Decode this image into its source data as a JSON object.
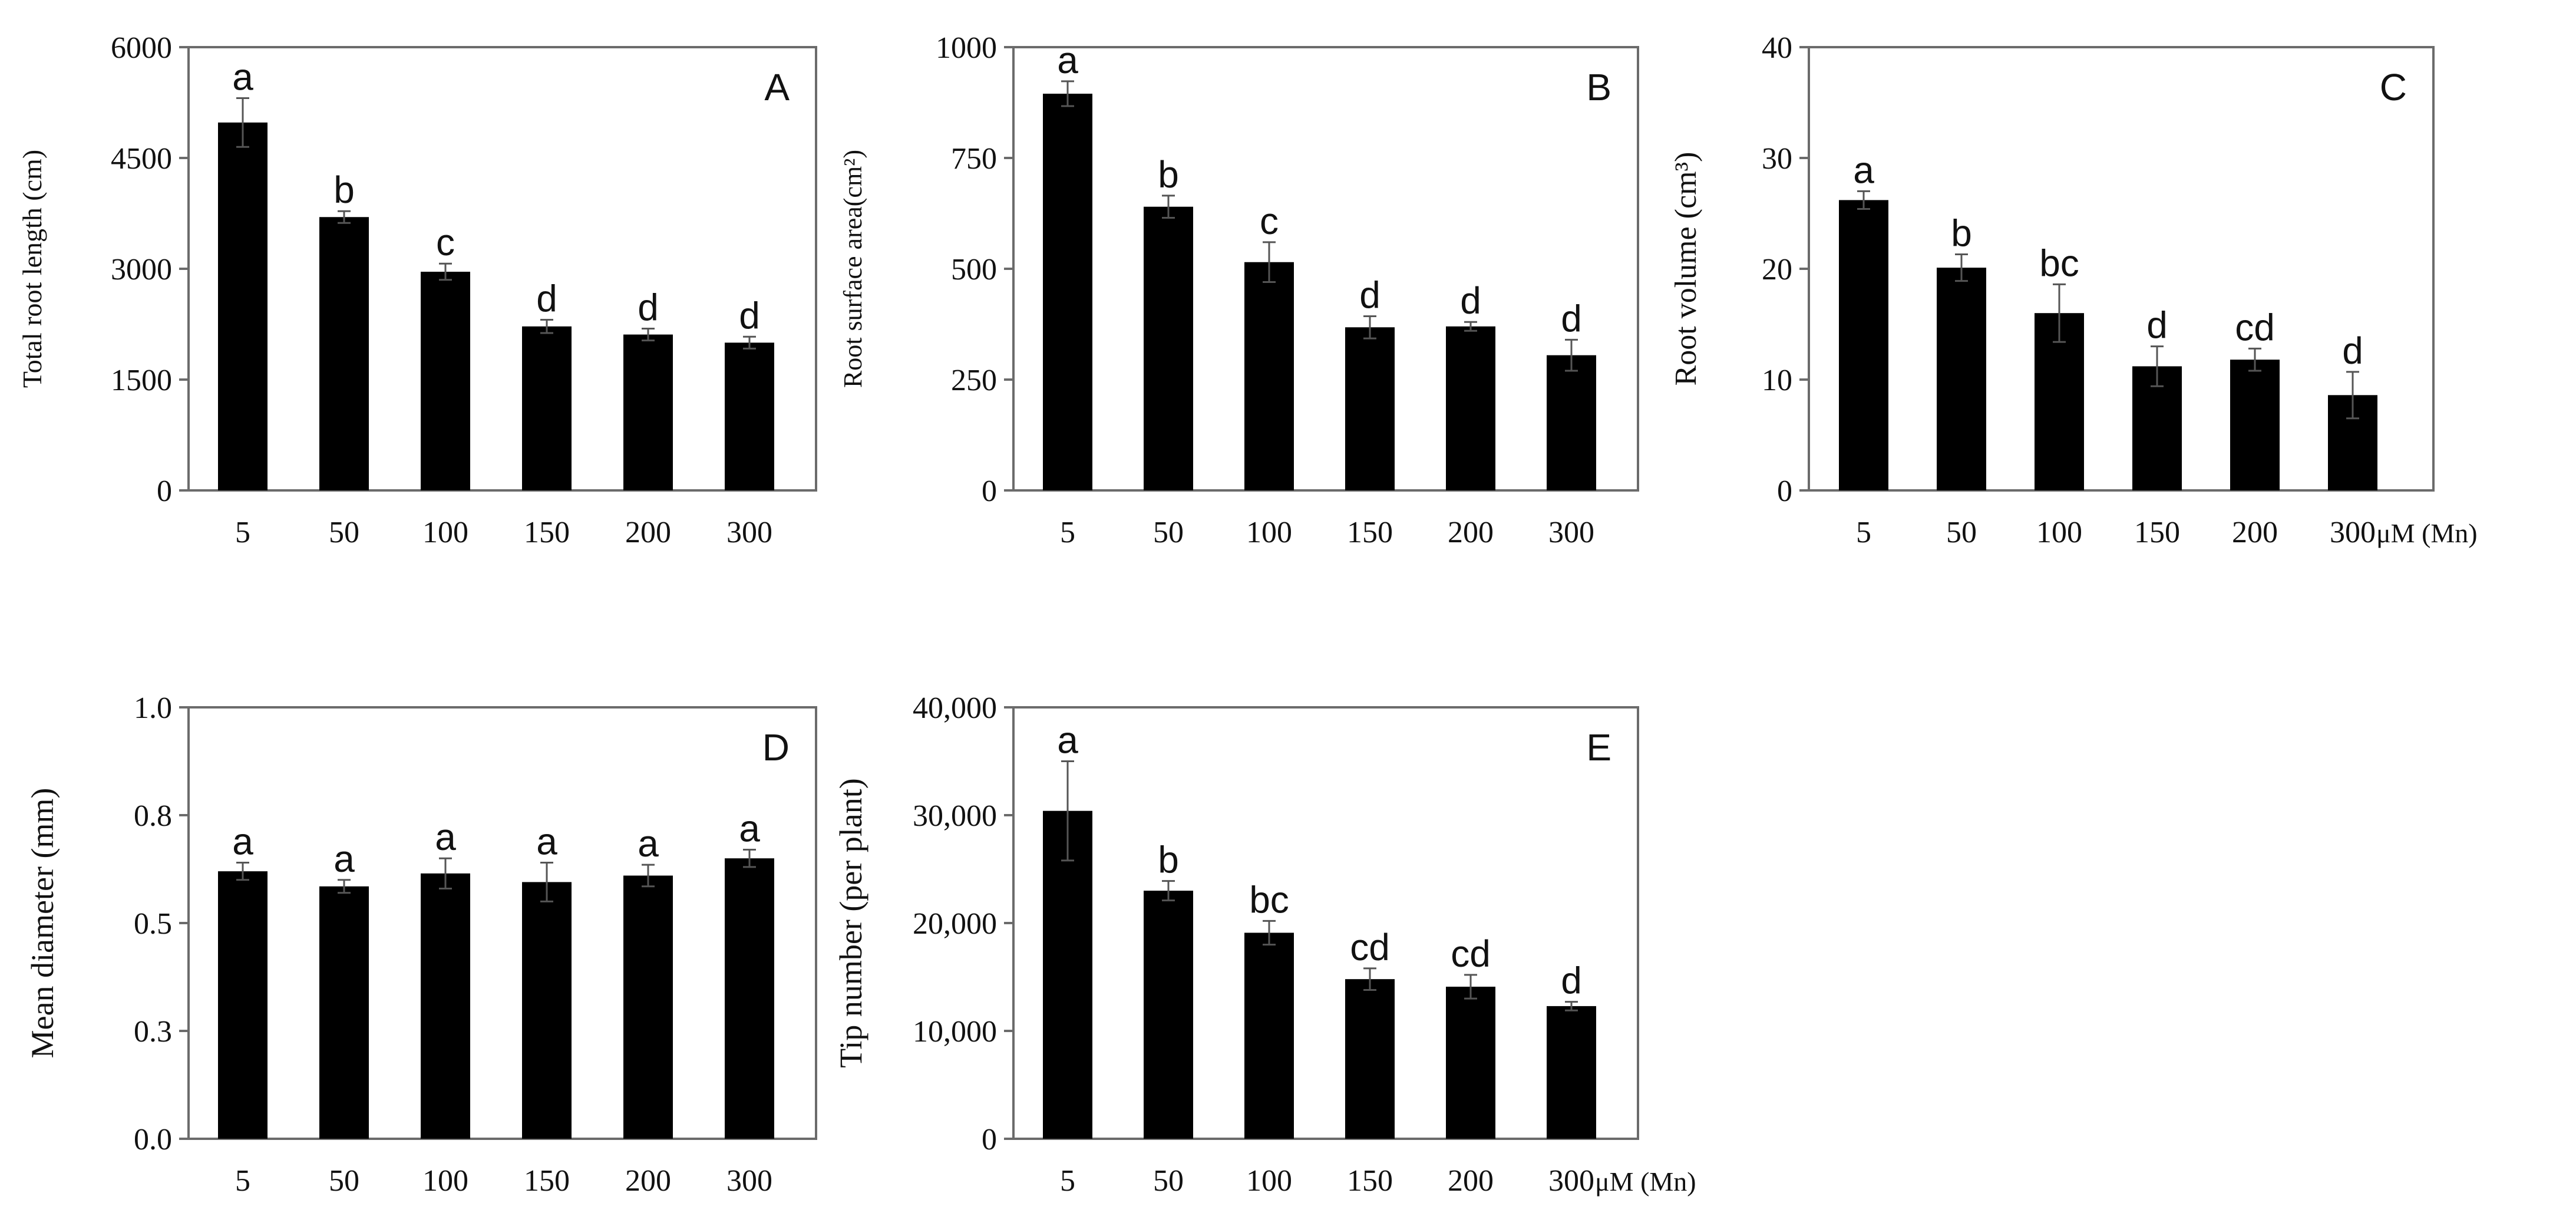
{
  "colors": {
    "bar": "#000000",
    "axis": "#6b6b6b",
    "error_bar": "#555555",
    "text": "#111111"
  },
  "chart_data": [
    {
      "type": "bar",
      "panel_letter": "A",
      "ylabel": "Total root length (cm)",
      "categories": [
        "5",
        "50",
        "100",
        "150",
        "200",
        "300"
      ],
      "values": [
        4980,
        3700,
        2960,
        2220,
        2110,
        2000
      ],
      "errors": [
        330,
        80,
        110,
        90,
        80,
        80
      ],
      "significance": [
        "a",
        "b",
        "c",
        "d",
        "d",
        "d"
      ],
      "ylim": [
        0,
        6000
      ],
      "yticks": [
        0,
        1500,
        3000,
        4500,
        6000
      ],
      "ytick_labels": [
        "0",
        "1500",
        "3000",
        "4500",
        "6000"
      ],
      "x_unit": ""
    },
    {
      "type": "bar",
      "panel_letter": "B",
      "ylabel": "Root surface area(cm²)",
      "categories": [
        "5",
        "50",
        "100",
        "150",
        "200",
        "300"
      ],
      "values": [
        895,
        640,
        515,
        368,
        370,
        305
      ],
      "errors": [
        28,
        25,
        45,
        25,
        10,
        35
      ],
      "significance": [
        "a",
        "b",
        "c",
        "d",
        "d",
        "d"
      ],
      "ylim": [
        0,
        1000
      ],
      "yticks": [
        0,
        250,
        500,
        750,
        1000
      ],
      "ytick_labels": [
        "0",
        "250",
        "500",
        "750",
        "1000"
      ],
      "x_unit": ""
    },
    {
      "type": "bar",
      "panel_letter": "C",
      "ylabel": "Root volume (cm³)",
      "categories": [
        "5",
        "50",
        "100",
        "150",
        "200",
        "300"
      ],
      "values": [
        26.2,
        20.1,
        16.0,
        11.2,
        11.8,
        8.6
      ],
      "errors": [
        0.8,
        1.2,
        2.6,
        1.8,
        1.0,
        2.1
      ],
      "significance": [
        "a",
        "b",
        "bc",
        "d",
        "cd",
        "d"
      ],
      "ylim": [
        0,
        40
      ],
      "yticks": [
        0,
        10,
        20,
        30,
        40
      ],
      "ytick_labels": [
        "0",
        "10",
        "20",
        "30",
        "40"
      ],
      "x_unit": "μM (Mn)"
    },
    {
      "type": "bar",
      "panel_letter": "D",
      "ylabel": "Mean diameter (mm)",
      "categories": [
        "5",
        "50",
        "100",
        "150",
        "200",
        "300"
      ],
      "values": [
        0.62,
        0.585,
        0.615,
        0.595,
        0.61,
        0.65
      ],
      "errors": [
        0.02,
        0.015,
        0.035,
        0.045,
        0.025,
        0.02
      ],
      "significance": [
        "a",
        "a",
        "a",
        "a",
        "a",
        "a"
      ],
      "ylim": [
        0,
        1.0
      ],
      "yticks": [
        0,
        0.25,
        0.5,
        0.75,
        1.0
      ],
      "ytick_labels": [
        "0.0",
        "0.3",
        "0.5",
        "0.8",
        "1.0"
      ],
      "x_unit": ""
    },
    {
      "type": "bar",
      "panel_letter": "E",
      "ylabel": "Tip number (per plant)",
      "categories": [
        "5",
        "50",
        "100",
        "150",
        "200",
        "300"
      ],
      "values": [
        30400,
        23000,
        19100,
        14800,
        14100,
        12300
      ],
      "errors": [
        4600,
        900,
        1100,
        1000,
        1100,
        400
      ],
      "significance": [
        "a",
        "b",
        "bc",
        "cd",
        "cd",
        "d"
      ],
      "ylim": [
        0,
        40000
      ],
      "yticks": [
        0,
        10000,
        20000,
        30000,
        40000
      ],
      "ytick_labels": [
        "0",
        "10,000",
        "20,000",
        "30,000",
        "40,000"
      ],
      "x_unit": "μM (Mn)"
    }
  ]
}
